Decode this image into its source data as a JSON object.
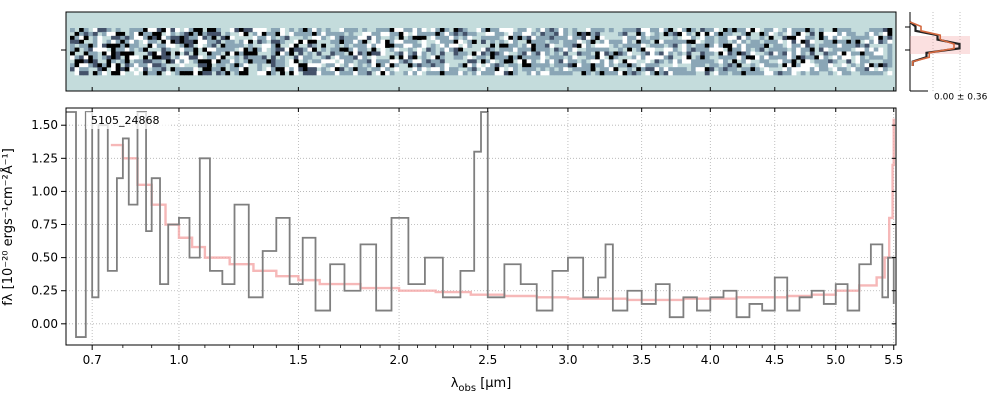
{
  "chart_data": [
    {
      "type": "heatmap",
      "panel": "2D spectrum",
      "colormap": [
        "#ffffff",
        "#c4dcdc",
        "#8aa6b6",
        "#44526a",
        "#000000"
      ],
      "background": "#c4dcdc"
    },
    {
      "type": "line",
      "panel": "cross-dispersion profile",
      "annotation": "0.00 ± 0.36",
      "series": [
        {
          "color": "#222222",
          "values": [
            0.0,
            0.1,
            0.5,
            0.9,
            0.3,
            0.05
          ]
        },
        {
          "color": "#d4693f",
          "values": [
            0.0,
            0.2,
            0.55,
            0.8,
            0.35,
            0.05
          ]
        }
      ]
    },
    {
      "type": "line",
      "panel": "1D spectrum",
      "object_label": "5105_24868",
      "xlabel": "λobs [μm]",
      "ylabel": "fλ [10⁻²⁰ ergs⁻¹cm⁻²Å⁻¹]",
      "x_scale": "sqrt",
      "xlim": [
        0.62,
        5.52
      ],
      "ylim": [
        -0.16,
        1.63
      ],
      "xticks": [
        "0.7",
        "1.0",
        "1.5",
        "2.0",
        "2.5",
        "3.0",
        "3.5",
        "4.0",
        "4.5",
        "5.0",
        "5.5"
      ],
      "xtick_values": [
        0.7,
        1.0,
        1.5,
        2.0,
        2.5,
        3.0,
        3.5,
        4.0,
        4.5,
        5.0,
        5.5
      ],
      "yticks": [
        "0.00",
        "0.25",
        "0.50",
        "0.75",
        "1.00",
        "1.25",
        "1.50"
      ],
      "ytick_values": [
        0.0,
        0.25,
        0.5,
        0.75,
        1.0,
        1.25,
        1.5
      ],
      "grid": true,
      "series": [
        {
          "color": "#7f7f7f",
          "x": [
            0.62,
            0.65,
            0.68,
            0.7,
            0.72,
            0.75,
            0.78,
            0.8,
            0.82,
            0.85,
            0.88,
            0.9,
            0.93,
            0.96,
            1.0,
            1.04,
            1.08,
            1.12,
            1.17,
            1.22,
            1.28,
            1.34,
            1.4,
            1.46,
            1.52,
            1.58,
            1.65,
            1.72,
            1.8,
            1.88,
            1.96,
            2.05,
            2.14,
            2.24,
            2.34,
            2.42,
            2.46,
            2.5,
            2.6,
            2.7,
            2.8,
            2.9,
            3.0,
            3.1,
            3.2,
            3.25,
            3.3,
            3.4,
            3.5,
            3.6,
            3.7,
            3.8,
            3.9,
            4.0,
            4.1,
            4.2,
            4.3,
            4.4,
            4.5,
            4.6,
            4.7,
            4.8,
            4.9,
            5.0,
            5.1,
            5.2,
            5.3,
            5.4,
            5.45,
            5.5
          ],
          "y": [
            1.6,
            -0.1,
            1.6,
            0.2,
            1.5,
            0.4,
            1.1,
            1.4,
            0.9,
            1.6,
            0.7,
            1.1,
            0.3,
            0.75,
            0.8,
            0.5,
            1.25,
            0.4,
            0.3,
            0.9,
            0.2,
            0.55,
            0.8,
            0.3,
            0.65,
            0.1,
            0.45,
            0.25,
            0.6,
            0.1,
            0.8,
            0.3,
            0.5,
            0.2,
            0.4,
            1.3,
            1.6,
            0.2,
            0.45,
            0.3,
            0.1,
            0.4,
            0.5,
            0.2,
            0.35,
            0.6,
            0.1,
            0.25,
            0.15,
            0.3,
            0.05,
            0.2,
            0.1,
            0.2,
            0.25,
            0.05,
            0.15,
            0.1,
            0.35,
            0.1,
            0.2,
            0.25,
            0.15,
            0.3,
            0.1,
            0.45,
            0.6,
            0.2,
            0.5,
            0.15
          ]
        },
        {
          "color": "#f4a6a6",
          "x": [
            0.76,
            0.8,
            0.85,
            0.9,
            0.95,
            1.0,
            1.05,
            1.1,
            1.2,
            1.3,
            1.4,
            1.5,
            1.6,
            1.8,
            2.0,
            2.2,
            2.4,
            2.6,
            2.8,
            3.0,
            3.2,
            3.4,
            3.6,
            3.8,
            4.0,
            4.2,
            4.4,
            4.6,
            4.8,
            5.0,
            5.2,
            5.35,
            5.42,
            5.46,
            5.49,
            5.5
          ],
          "y": [
            1.35,
            1.25,
            1.05,
            0.9,
            0.75,
            0.65,
            0.58,
            0.5,
            0.45,
            0.4,
            0.36,
            0.33,
            0.3,
            0.27,
            0.25,
            0.24,
            0.22,
            0.21,
            0.2,
            0.19,
            0.19,
            0.18,
            0.18,
            0.19,
            0.19,
            0.2,
            0.2,
            0.21,
            0.22,
            0.25,
            0.29,
            0.35,
            0.5,
            0.8,
            1.2,
            1.55
          ]
        }
      ]
    }
  ]
}
